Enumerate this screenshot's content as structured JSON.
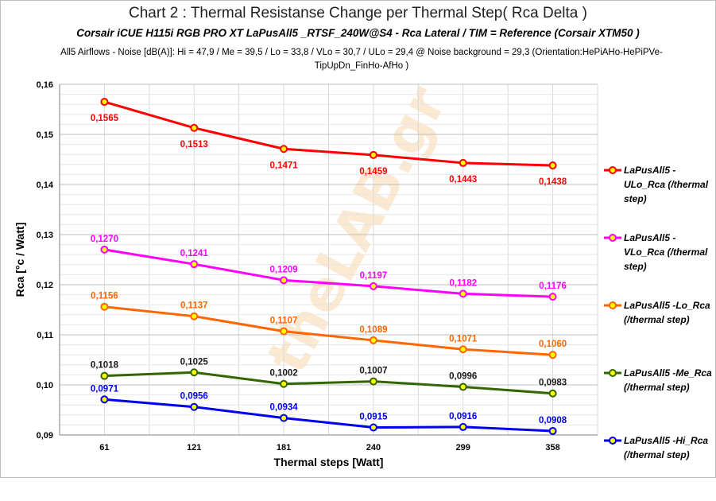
{
  "chart_data": {
    "type": "line",
    "title": "Chart 2 :  Thermal Resistanse Change per Thermal Step( Rca  Delta )",
    "subtitle": "Corsair iCUE H115i RGB PRO XT  LaPusAll5 _RTSF_240W@S4  -  Rca Lateral    /   TIM =  Reference   (Corsair XTM50 )",
    "note": "All5 Airflows  -  Noise [dB(A)]: Hi = 47,9 / Me = 39,5 / Lo = 33,8 / VLo = 30,7 / ULo = 29,4 @ Noise background = 29,3     (Orientation:HePiAHo-HePiPVe-TipUpDn_FinHo-AfHo  )",
    "xlabel": "Thermal steps  [Watt]",
    "ylabel": "Rca   [°c / Watt]",
    "categories": [
      "61",
      "121",
      "181",
      "240",
      "299",
      "358"
    ],
    "ylim": [
      0.09,
      0.16
    ],
    "yticks": [
      "0,09",
      "0,10",
      "0,11",
      "0,12",
      "0,13",
      "0,14",
      "0,15",
      "0,16"
    ],
    "grid": true,
    "legend_position": "right",
    "watermark": "theLAB.gr",
    "series": [
      {
        "name": "LaPusAll5 - ULo_Rca (/thermal step)",
        "color": "#ff0000",
        "marker_fill": "#ffff00",
        "values": [
          0.1565,
          0.1513,
          0.1471,
          0.1459,
          0.1443,
          0.1438
        ],
        "labels": [
          "0,1565",
          "0,1513",
          "0,1471",
          "0,1459",
          "0,1443",
          "0,1438"
        ],
        "label_pos": "below"
      },
      {
        "name": "LaPusAll5 - VLo_Rca (/thermal step)",
        "color": "#ff00ff",
        "marker_fill": "#ffff00",
        "values": [
          0.127,
          0.1241,
          0.1209,
          0.1197,
          0.1182,
          0.1176
        ],
        "labels": [
          "0,1270",
          "0,1241",
          "0,1209",
          "0,1197",
          "0,1182",
          "0,1176"
        ],
        "label_pos": "above"
      },
      {
        "name": "LaPusAll5 -Lo_Rca (/thermal step)",
        "color": "#ff6600",
        "marker_fill": "#ffff00",
        "values": [
          0.1156,
          0.1137,
          0.1107,
          0.1089,
          0.1071,
          0.106
        ],
        "labels": [
          "0,1156",
          "0,1137",
          "0,1107",
          "0,1089",
          "0,1071",
          "0,1060"
        ],
        "label_pos": "above"
      },
      {
        "name": "LaPusAll5 -Me_Rca (/thermal step)",
        "color": "#336600",
        "marker_fill": "#ffff00",
        "values": [
          0.1018,
          0.1025,
          0.1002,
          0.1007,
          0.0996,
          0.0983
        ],
        "labels": [
          "0,1018",
          "0,1025",
          "0,1002",
          "0,1007",
          "0,0996",
          "0,0983"
        ],
        "label_pos": "above"
      },
      {
        "name": "LaPusAll5 -Hi_Rca (/thermal step)",
        "color": "#0000ee",
        "marker_fill": "#ffff00",
        "values": [
          0.0971,
          0.0956,
          0.0934,
          0.0915,
          0.0916,
          0.0908
        ],
        "labels": [
          "0,0971",
          "0,0956",
          "0,0934",
          "0,0915",
          "0,0916",
          "0,0908"
        ],
        "label_pos": "above"
      }
    ]
  }
}
